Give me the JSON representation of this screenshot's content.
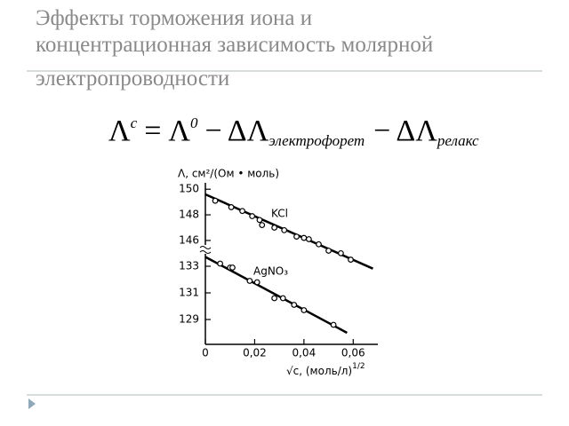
{
  "slide": {
    "title_lines": [
      "Эффекты торможения иона и",
      "концентрационная зависимость молярной",
      "электропроводности"
    ],
    "formula": {
      "lhs": "Λ",
      "lhs_sup": "c",
      "equals": "=",
      "rhs": "Λ",
      "rhs_sup": "0",
      "minus": "−",
      "term1": "ΔΛ",
      "term1_sub": "электрофорет",
      "term2": "ΔΛ",
      "term2_sub": "релакс"
    }
  },
  "chart_data": {
    "type": "scatter",
    "ylabel": "Λ, см²/(Ом • моль)",
    "xlabel": "√c, (моль/л)",
    "xlabel_sup": "1/2",
    "xlim": [
      0,
      0.07
    ],
    "xticks": [
      0,
      {
        "value": 0.02,
        "label": "0,02"
      },
      {
        "value": 0.04,
        "label": "0,04"
      },
      {
        "value": 0.06,
        "label": "0,06"
      }
    ],
    "ylim": [
      127.2,
      134
    ],
    "yticks": [
      129,
      131,
      133
    ],
    "y2lim": [
      143.5,
      150.5
    ],
    "y2ticks": [
      146,
      148,
      150
    ],
    "series": [
      {
        "name": "KCl",
        "axis": "y2",
        "color": "#000000",
        "x": [
          0.004,
          0.0105,
          0.015,
          0.019,
          0.022,
          0.023,
          0.028,
          0.032,
          0.037,
          0.04,
          0.042,
          0.046,
          0.05,
          0.055,
          0.059
        ],
        "values": [
          149.1,
          148.6,
          148.3,
          147.9,
          147.6,
          147.2,
          147.0,
          146.8,
          146.3,
          146.2,
          146.1,
          145.7,
          145.2,
          145.0,
          144.5
        ],
        "fit_x": [
          0,
          0.068
        ],
        "fit_values": [
          149.6,
          143.8
        ]
      },
      {
        "name": "AgNO₃",
        "axis": "y",
        "color": "#000000",
        "x": [
          0.006,
          0.01,
          0.011,
          0.018,
          0.021,
          0.028,
          0.0315,
          0.036,
          0.04,
          0.052
        ],
        "values": [
          133.2,
          132.9,
          132.9,
          131.9,
          131.8,
          130.6,
          130.6,
          130.1,
          129.7,
          128.6
        ],
        "fit_x": [
          0,
          0.0575
        ],
        "fit_values": [
          133.7,
          128.0
        ]
      }
    ]
  }
}
